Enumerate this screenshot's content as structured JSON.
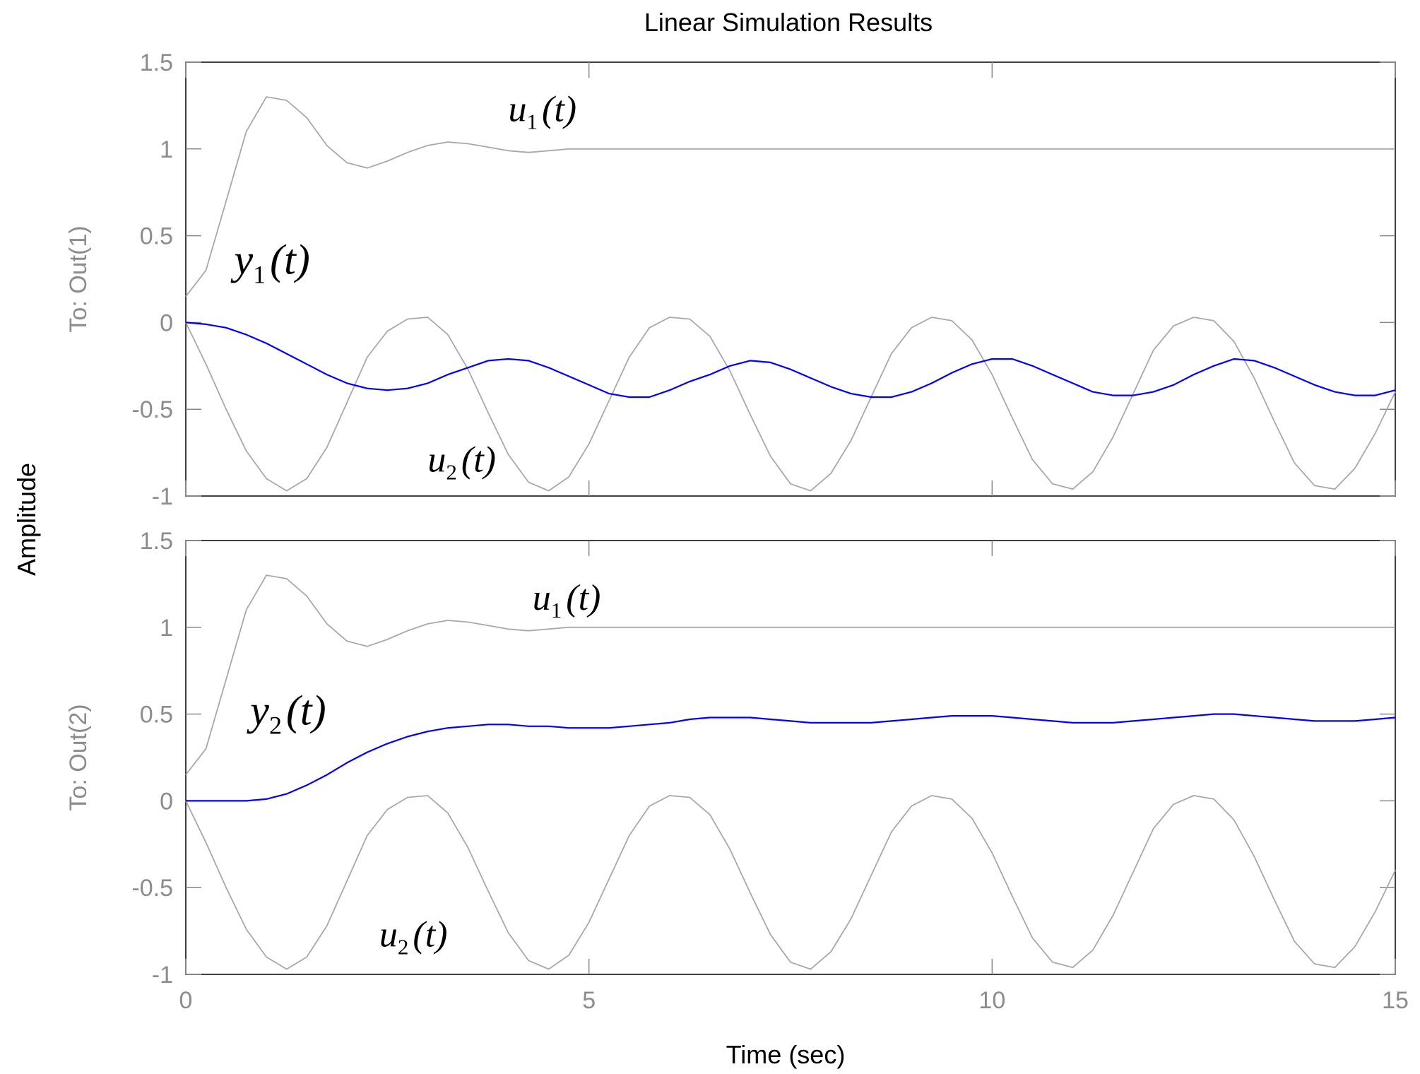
{
  "chart_data": {
    "type": "line",
    "title": "Linear Simulation Results",
    "xlabel": "Time (sec)",
    "ylabel": "Amplitude",
    "xlim": [
      0,
      15
    ],
    "xticks": [
      "0",
      "5",
      "10",
      "15"
    ],
    "grid": false,
    "colors": {
      "output": "#0000ff",
      "input": "#a8a8a8",
      "axes": "#000000",
      "ticks": "#8c8c8c"
    },
    "x": [
      0,
      0.25,
      0.5,
      0.75,
      1,
      1.25,
      1.5,
      1.75,
      2,
      2.25,
      2.5,
      2.75,
      3,
      3.25,
      3.5,
      3.75,
      4,
      4.25,
      4.5,
      4.75,
      5,
      5.25,
      5.5,
      5.75,
      6,
      6.25,
      6.5,
      6.75,
      7,
      7.25,
      7.5,
      7.75,
      8,
      8.25,
      8.5,
      8.75,
      9,
      9.25,
      9.5,
      9.75,
      10,
      10.25,
      10.5,
      10.75,
      11,
      11.25,
      11.5,
      11.75,
      12,
      12.25,
      12.5,
      12.75,
      13,
      13.25,
      13.5,
      13.75,
      14,
      14.25,
      14.5,
      14.75,
      15
    ],
    "subplots": [
      {
        "ylabel": "To: Out(1)",
        "ylim": [
          -1,
          1.5
        ],
        "yticks": [
          "1.5",
          "1",
          "0.5",
          "0",
          "-0.5",
          "-1"
        ],
        "annotations": [
          {
            "base": "u",
            "sub": "1",
            "arg": "(t)",
            "x": 4.0,
            "y": 1.16
          },
          {
            "base": "y",
            "sub": "1",
            "arg": "(t)",
            "x": 0.6,
            "y": 0.28
          },
          {
            "base": "u",
            "sub": "2",
            "arg": "(t)",
            "x": 3.0,
            "y": -0.86
          }
        ],
        "series": [
          {
            "label": "u1",
            "role": "input",
            "values": [
              0.15,
              0.3,
              0.7,
              1.1,
              1.3,
              1.28,
              1.18,
              1.02,
              0.92,
              0.89,
              0.93,
              0.98,
              1.02,
              1.04,
              1.03,
              1.01,
              0.99,
              0.98,
              0.99,
              1.0,
              1.0,
              1.0,
              1.0,
              1.0,
              1.0,
              1.0,
              1.0,
              1.0,
              1.0,
              1.0,
              1.0,
              1.0,
              1.0,
              1.0,
              1.0,
              1.0,
              1.0,
              1.0,
              1.0,
              1.0,
              1.0,
              1.0,
              1.0,
              1.0,
              1.0,
              1.0,
              1.0,
              1.0,
              1.0,
              1.0,
              1.0,
              1.0,
              1.0,
              1.0,
              1.0,
              1.0,
              1.0,
              1.0,
              1.0,
              1.0,
              1.0
            ]
          },
          {
            "label": "u2",
            "role": "input",
            "values": [
              0.0,
              -0.24,
              -0.5,
              -0.74,
              -0.9,
              -0.97,
              -0.9,
              -0.72,
              -0.46,
              -0.2,
              -0.05,
              0.02,
              0.03,
              -0.07,
              -0.27,
              -0.52,
              -0.76,
              -0.92,
              -0.97,
              -0.89,
              -0.7,
              -0.45,
              -0.2,
              -0.03,
              0.03,
              0.02,
              -0.08,
              -0.28,
              -0.53,
              -0.77,
              -0.93,
              -0.97,
              -0.87,
              -0.68,
              -0.43,
              -0.18,
              -0.03,
              0.03,
              0.01,
              -0.1,
              -0.3,
              -0.55,
              -0.79,
              -0.93,
              -0.96,
              -0.86,
              -0.66,
              -0.41,
              -0.16,
              -0.02,
              0.03,
              0.01,
              -0.11,
              -0.32,
              -0.57,
              -0.81,
              -0.94,
              -0.96,
              -0.84,
              -0.64,
              -0.4
            ]
          },
          {
            "label": "y1",
            "role": "output",
            "values": [
              0.0,
              -0.01,
              -0.03,
              -0.07,
              -0.12,
              -0.18,
              -0.24,
              -0.3,
              -0.35,
              -0.38,
              -0.39,
              -0.38,
              -0.35,
              -0.3,
              -0.26,
              -0.22,
              -0.21,
              -0.22,
              -0.26,
              -0.31,
              -0.36,
              -0.41,
              -0.43,
              -0.43,
              -0.39,
              -0.34,
              -0.3,
              -0.25,
              -0.22,
              -0.23,
              -0.27,
              -0.32,
              -0.37,
              -0.41,
              -0.43,
              -0.43,
              -0.4,
              -0.35,
              -0.29,
              -0.24,
              -0.21,
              -0.21,
              -0.25,
              -0.3,
              -0.35,
              -0.4,
              -0.42,
              -0.42,
              -0.4,
              -0.36,
              -0.3,
              -0.25,
              -0.21,
              -0.22,
              -0.26,
              -0.31,
              -0.36,
              -0.4,
              -0.42,
              -0.42,
              -0.39
            ]
          }
        ]
      },
      {
        "ylabel": "To: Out(2)",
        "ylim": [
          -1,
          1.5
        ],
        "yticks": [
          "1.5",
          "1",
          "0.5",
          "0",
          "-0.5",
          "-1"
        ],
        "annotations": [
          {
            "base": "u",
            "sub": "1",
            "arg": "(t)",
            "x": 4.3,
            "y": 1.1
          },
          {
            "base": "y",
            "sub": "2",
            "arg": "(t)",
            "x": 0.8,
            "y": 0.44
          },
          {
            "base": "u",
            "sub": "2",
            "arg": "(t)",
            "x": 2.4,
            "y": -0.84
          }
        ],
        "series": [
          {
            "label": "u1",
            "role": "input",
            "values": [
              0.15,
              0.3,
              0.7,
              1.1,
              1.3,
              1.28,
              1.18,
              1.02,
              0.92,
              0.89,
              0.93,
              0.98,
              1.02,
              1.04,
              1.03,
              1.01,
              0.99,
              0.98,
              0.99,
              1.0,
              1.0,
              1.0,
              1.0,
              1.0,
              1.0,
              1.0,
              1.0,
              1.0,
              1.0,
              1.0,
              1.0,
              1.0,
              1.0,
              1.0,
              1.0,
              1.0,
              1.0,
              1.0,
              1.0,
              1.0,
              1.0,
              1.0,
              1.0,
              1.0,
              1.0,
              1.0,
              1.0,
              1.0,
              1.0,
              1.0,
              1.0,
              1.0,
              1.0,
              1.0,
              1.0,
              1.0,
              1.0,
              1.0,
              1.0,
              1.0,
              1.0
            ]
          },
          {
            "label": "u2",
            "role": "input",
            "values": [
              0.0,
              -0.24,
              -0.5,
              -0.74,
              -0.9,
              -0.97,
              -0.9,
              -0.72,
              -0.46,
              -0.2,
              -0.05,
              0.02,
              0.03,
              -0.07,
              -0.27,
              -0.52,
              -0.76,
              -0.92,
              -0.97,
              -0.89,
              -0.7,
              -0.45,
              -0.2,
              -0.03,
              0.03,
              0.02,
              -0.08,
              -0.28,
              -0.53,
              -0.77,
              -0.93,
              -0.97,
              -0.87,
              -0.68,
              -0.43,
              -0.18,
              -0.03,
              0.03,
              0.01,
              -0.1,
              -0.3,
              -0.55,
              -0.79,
              -0.93,
              -0.96,
              -0.86,
              -0.66,
              -0.41,
              -0.16,
              -0.02,
              0.03,
              0.01,
              -0.11,
              -0.32,
              -0.57,
              -0.81,
              -0.94,
              -0.96,
              -0.84,
              -0.64,
              -0.4
            ]
          },
          {
            "label": "y2",
            "role": "output",
            "values": [
              0.0,
              0.0,
              0.0,
              0.0,
              0.01,
              0.04,
              0.09,
              0.15,
              0.22,
              0.28,
              0.33,
              0.37,
              0.4,
              0.42,
              0.43,
              0.44,
              0.44,
              0.43,
              0.43,
              0.42,
              0.42,
              0.42,
              0.43,
              0.44,
              0.45,
              0.47,
              0.48,
              0.48,
              0.48,
              0.47,
              0.46,
              0.45,
              0.45,
              0.45,
              0.45,
              0.46,
              0.47,
              0.48,
              0.49,
              0.49,
              0.49,
              0.48,
              0.47,
              0.46,
              0.45,
              0.45,
              0.45,
              0.46,
              0.47,
              0.48,
              0.49,
              0.5,
              0.5,
              0.49,
              0.48,
              0.47,
              0.46,
              0.46,
              0.46,
              0.47,
              0.48
            ]
          }
        ]
      }
    ]
  }
}
